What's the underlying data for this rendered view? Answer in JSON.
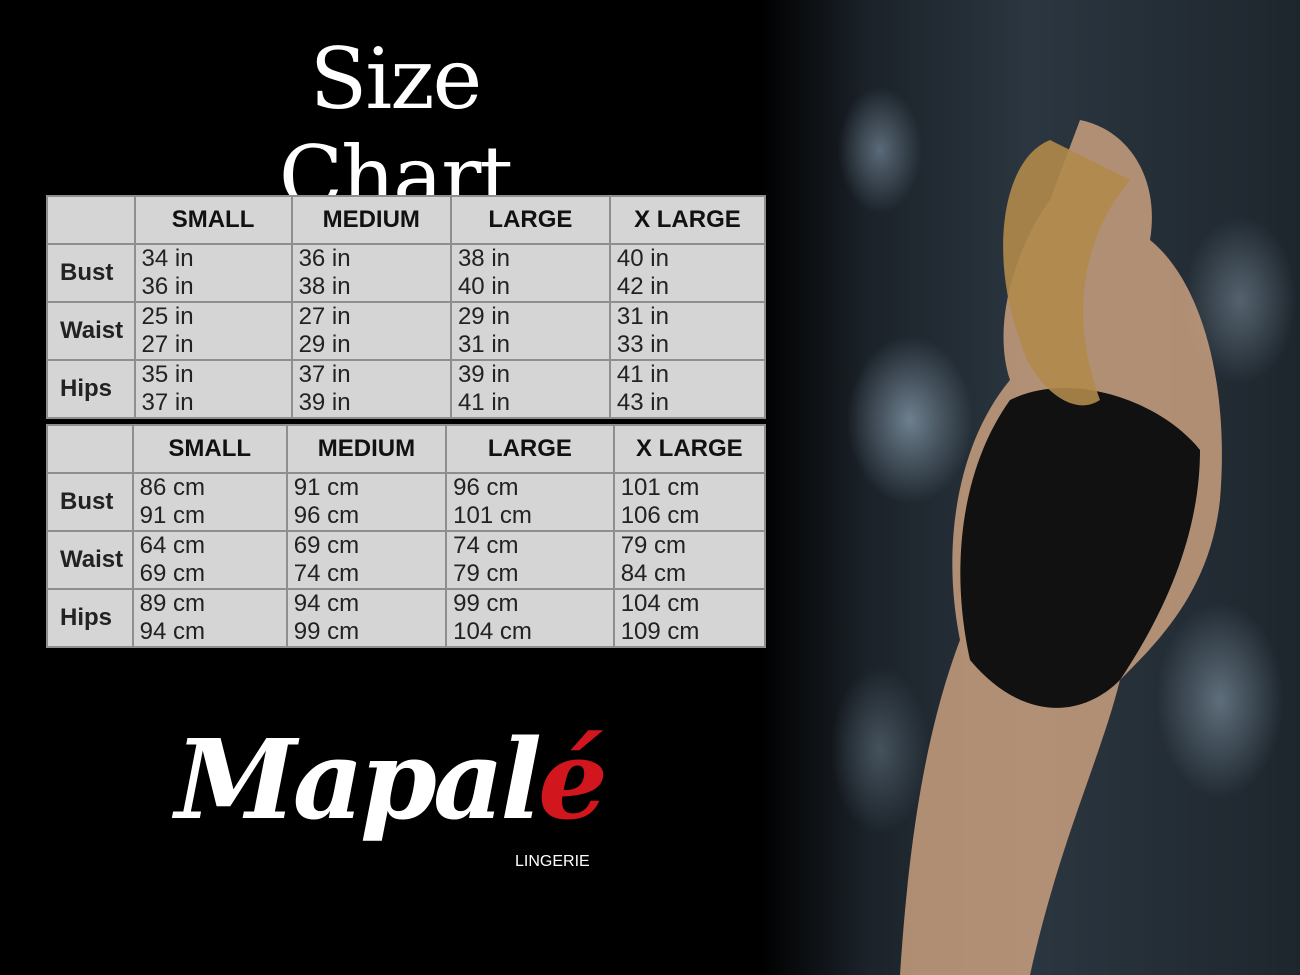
{
  "title": "Size Chart",
  "sizes": [
    "SMALL",
    "MEDIUM",
    "LARGE",
    "X LARGE"
  ],
  "tables": [
    {
      "unit": "in",
      "rows": [
        {
          "label": "Bust",
          "values": [
            "34 in",
            "36 in",
            "36 in",
            "38 in",
            "38 in",
            "40 in",
            "40 in",
            "42 in"
          ]
        },
        {
          "label": "Waist",
          "values": [
            "25 in",
            "27 in",
            "27 in",
            "29 in",
            "29 in",
            "31 in",
            "31 in",
            "33 in"
          ]
        },
        {
          "label": "Hips",
          "values": [
            "35 in",
            "37 in",
            "37 in",
            "39 in",
            "39 in",
            "41 in",
            "41 in",
            "43 in"
          ]
        }
      ]
    },
    {
      "unit": "cm",
      "rows": [
        {
          "label": "Bust",
          "values": [
            "86 cm",
            "91 cm",
            "91 cm",
            "96 cm",
            "96 cm",
            "101 cm",
            "101 cm",
            "106 cm"
          ]
        },
        {
          "label": "Waist",
          "values": [
            "64 cm",
            "69 cm",
            "69 cm",
            "74 cm",
            "74 cm",
            "79 cm",
            "79 cm",
            "84 cm"
          ]
        },
        {
          "label": "Hips",
          "values": [
            "89 cm",
            "94 cm",
            "94 cm",
            "99 cm",
            "99 cm",
            "104 cm",
            "104 cm",
            "109 cm"
          ]
        }
      ]
    }
  ],
  "logo": {
    "main": "Mapal",
    "accent": "é",
    "sub": "LINGERIE",
    "accent_color": "#d2161e"
  },
  "colors": {
    "background": "#000000",
    "table_bg": "#d5d5d5",
    "table_border": "#8e8e8e"
  }
}
